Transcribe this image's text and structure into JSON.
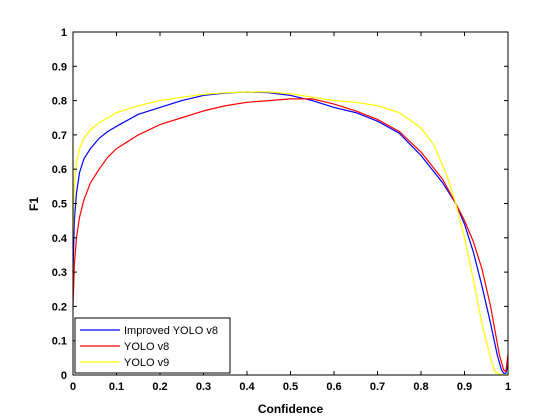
{
  "chart_data": {
    "type": "line",
    "title": "",
    "xlabel": "Confidence",
    "ylabel": "F1",
    "xlim": [
      0,
      1
    ],
    "ylim": [
      0,
      1
    ],
    "grid": false,
    "legend_position": "bottom-left",
    "x_ticks": [
      0,
      0.1,
      0.2,
      0.3,
      0.4,
      0.5,
      0.6,
      0.7,
      0.8,
      0.9,
      1
    ],
    "x_tick_labels": [
      "0",
      "0.1",
      "0.2",
      "0.3",
      "0.4",
      "0.5",
      "0.6",
      "0.7",
      "0.8",
      "0.9",
      "1"
    ],
    "y_ticks": [
      0,
      0.1,
      0.2,
      0.3,
      0.4,
      0.5,
      0.6,
      0.7,
      0.8,
      0.9,
      1
    ],
    "y_tick_labels": [
      "0",
      "0.1",
      "0.2",
      "0.3",
      "0.4",
      "0.5",
      "0.6",
      "0.7",
      "0.8",
      "0.9",
      "1"
    ],
    "series": [
      {
        "name": "Improved YOLO v8",
        "color": "#0000ff",
        "x": [
          0,
          0.003,
          0.008,
          0.015,
          0.025,
          0.04,
          0.06,
          0.08,
          0.1,
          0.15,
          0.2,
          0.25,
          0.3,
          0.35,
          0.4,
          0.45,
          0.5,
          0.55,
          0.6,
          0.65,
          0.7,
          0.75,
          0.8,
          0.85,
          0.88,
          0.9,
          0.92,
          0.94,
          0.96,
          0.975,
          0.985,
          0.99,
          0.995,
          1.0
        ],
        "y": [
          0.3,
          0.45,
          0.53,
          0.59,
          0.63,
          0.66,
          0.69,
          0.71,
          0.725,
          0.76,
          0.78,
          0.8,
          0.815,
          0.822,
          0.825,
          0.823,
          0.815,
          0.8,
          0.78,
          0.765,
          0.74,
          0.705,
          0.64,
          0.56,
          0.5,
          0.44,
          0.36,
          0.26,
          0.15,
          0.06,
          0.015,
          0.005,
          0.005,
          0.03
        ]
      },
      {
        "name": "YOLO v8",
        "color": "#ff0000",
        "x": [
          0,
          0.003,
          0.008,
          0.015,
          0.025,
          0.04,
          0.06,
          0.08,
          0.1,
          0.15,
          0.2,
          0.25,
          0.3,
          0.35,
          0.4,
          0.45,
          0.5,
          0.55,
          0.6,
          0.65,
          0.7,
          0.75,
          0.8,
          0.85,
          0.88,
          0.9,
          0.92,
          0.94,
          0.96,
          0.97,
          0.98,
          0.99,
          0.995,
          1.0
        ],
        "y": [
          0.2,
          0.32,
          0.4,
          0.46,
          0.51,
          0.56,
          0.6,
          0.635,
          0.66,
          0.7,
          0.73,
          0.75,
          0.77,
          0.785,
          0.795,
          0.8,
          0.805,
          0.805,
          0.79,
          0.77,
          0.745,
          0.71,
          0.65,
          0.57,
          0.5,
          0.45,
          0.39,
          0.31,
          0.2,
          0.13,
          0.06,
          0.015,
          0.01,
          0.06
        ]
      },
      {
        "name": "YOLO v9",
        "color": "#ffff00",
        "x": [
          0,
          0.003,
          0.008,
          0.015,
          0.025,
          0.04,
          0.06,
          0.08,
          0.1,
          0.15,
          0.2,
          0.25,
          0.3,
          0.35,
          0.4,
          0.45,
          0.5,
          0.55,
          0.6,
          0.65,
          0.7,
          0.75,
          0.8,
          0.83,
          0.86,
          0.88,
          0.9,
          0.92,
          0.94,
          0.96,
          0.97,
          0.98,
          0.99,
          1.0
        ],
        "y": [
          0.4,
          0.55,
          0.62,
          0.66,
          0.69,
          0.715,
          0.735,
          0.75,
          0.765,
          0.785,
          0.8,
          0.81,
          0.818,
          0.823,
          0.825,
          0.825,
          0.82,
          0.81,
          0.8,
          0.795,
          0.785,
          0.765,
          0.72,
          0.67,
          0.58,
          0.5,
          0.4,
          0.28,
          0.15,
          0.05,
          0.01,
          0.003,
          0.0,
          0.0
        ]
      }
    ]
  }
}
